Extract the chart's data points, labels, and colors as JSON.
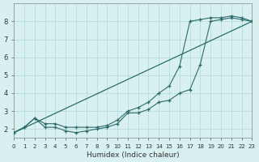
{
  "title": "",
  "xlabel": "Humidex (Indice chaleur)",
  "ylabel": "",
  "bg_color": "#d8f0f0",
  "line_color": "#2d6b6b",
  "grid_color": "#b0d8d8",
  "xlim": [
    0,
    23
  ],
  "ylim": [
    1.5,
    9.0
  ],
  "xticks": [
    0,
    1,
    2,
    3,
    4,
    5,
    6,
    7,
    8,
    9,
    10,
    11,
    12,
    13,
    14,
    15,
    16,
    17,
    18,
    19,
    20,
    21,
    22,
    23
  ],
  "yticks": [
    2,
    3,
    4,
    5,
    6,
    7,
    8
  ],
  "line1_x": [
    0,
    1,
    2,
    3,
    4,
    5,
    6,
    7,
    8,
    9,
    10,
    11,
    12,
    13,
    14,
    15,
    16,
    17,
    18,
    19,
    20,
    21,
    22,
    23
  ],
  "line1_y": [
    1.8,
    2.1,
    2.6,
    2.1,
    2.1,
    1.9,
    1.8,
    1.9,
    2.0,
    2.1,
    2.3,
    2.9,
    2.9,
    3.1,
    3.5,
    3.6,
    4.0,
    4.2,
    5.6,
    8.0,
    8.1,
    8.2,
    8.1,
    8.0
  ],
  "line2_x": [
    0,
    1,
    2,
    3,
    4,
    5,
    6,
    7,
    8,
    9,
    10,
    11,
    12,
    13,
    14,
    15,
    16,
    17,
    18,
    19,
    20,
    21,
    22,
    23
  ],
  "line2_y": [
    1.8,
    2.1,
    2.6,
    2.3,
    2.3,
    2.1,
    2.1,
    2.1,
    2.1,
    2.2,
    2.5,
    3.0,
    3.2,
    3.5,
    4.0,
    4.4,
    5.5,
    8.0,
    8.1,
    8.2,
    8.2,
    8.3,
    8.2,
    8.0
  ],
  "line3_x": [
    0,
    23
  ],
  "line3_y": [
    1.8,
    8.0
  ]
}
